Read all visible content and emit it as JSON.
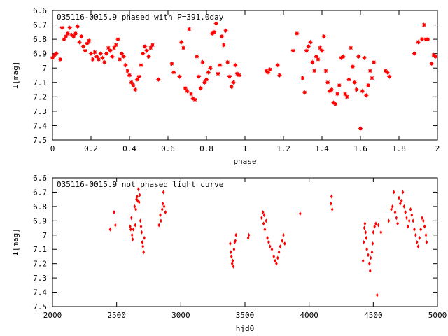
{
  "chart_data": [
    {
      "type": "scatter",
      "title": "035116-0015.9 phased with P=391.0day",
      "xlabel": "phase",
      "ylabel": "I[mag]",
      "xlim": [
        0,
        2
      ],
      "ylim": [
        6.6,
        7.5
      ],
      "y_inverted": true,
      "marker_color": "#ff0000",
      "marker_shape": "star",
      "xticks": [
        "0",
        "0.2",
        "0.4",
        "0.6",
        "0.8",
        "1",
        "1.2",
        "1.4",
        "1.6",
        "1.8",
        "2"
      ],
      "yticks": [
        "6.6",
        "6.7",
        "6.8",
        "6.9",
        "7",
        "7.1",
        "7.2",
        "7.3",
        "7.4",
        "7.5"
      ],
      "points": [
        [
          0.0,
          6.93
        ],
        [
          0.01,
          6.91
        ],
        [
          0.02,
          6.9
        ],
        [
          0.04,
          6.94
        ],
        [
          0.05,
          6.72
        ],
        [
          0.06,
          6.8
        ],
        [
          0.07,
          6.78
        ],
        [
          0.08,
          6.76
        ],
        [
          0.09,
          6.72
        ],
        [
          0.1,
          6.77
        ],
        [
          0.11,
          6.78
        ],
        [
          0.12,
          6.76
        ],
        [
          0.13,
          6.71
        ],
        [
          0.14,
          6.82
        ],
        [
          0.15,
          6.78
        ],
        [
          0.16,
          6.85
        ],
        [
          0.17,
          6.88
        ],
        [
          0.18,
          6.83
        ],
        [
          0.19,
          6.81
        ],
        [
          0.2,
          6.9
        ],
        [
          0.21,
          6.94
        ],
        [
          0.22,
          6.89
        ],
        [
          0.23,
          6.92
        ],
        [
          0.24,
          6.94
        ],
        [
          0.25,
          6.9
        ],
        [
          0.26,
          6.93
        ],
        [
          0.27,
          6.96
        ],
        [
          0.28,
          6.9
        ],
        [
          0.29,
          6.86
        ],
        [
          0.3,
          6.88
        ],
        [
          0.31,
          6.92
        ],
        [
          0.32,
          6.86
        ],
        [
          0.33,
          6.84
        ],
        [
          0.34,
          6.8
        ],
        [
          0.35,
          6.94
        ],
        [
          0.36,
          6.9
        ],
        [
          0.37,
          6.92
        ],
        [
          0.38,
          6.98
        ],
        [
          0.39,
          7.02
        ],
        [
          0.4,
          7.05
        ],
        [
          0.41,
          7.1
        ],
        [
          0.42,
          7.12
        ],
        [
          0.43,
          7.15
        ],
        [
          0.44,
          7.08
        ],
        [
          0.45,
          7.06
        ],
        [
          0.46,
          6.98
        ],
        [
          0.47,
          6.9
        ],
        [
          0.48,
          6.85
        ],
        [
          0.49,
          6.88
        ],
        [
          0.5,
          6.92
        ],
        [
          0.51,
          6.86
        ],
        [
          0.52,
          6.84
        ],
        [
          0.55,
          7.08
        ],
        [
          0.62,
          6.97
        ],
        [
          0.63,
          7.03
        ],
        [
          0.66,
          7.06
        ],
        [
          0.67,
          6.82
        ],
        [
          0.68,
          6.86
        ],
        [
          0.69,
          7.14
        ],
        [
          0.7,
          7.16
        ],
        [
          0.71,
          6.73
        ],
        [
          0.72,
          7.18
        ],
        [
          0.73,
          7.21
        ],
        [
          0.74,
          7.22
        ],
        [
          0.75,
          6.92
        ],
        [
          0.76,
          7.06
        ],
        [
          0.77,
          7.14
        ],
        [
          0.78,
          6.96
        ],
        [
          0.79,
          7.1
        ],
        [
          0.8,
          7.08
        ],
        [
          0.81,
          7.03
        ],
        [
          0.82,
          7.0
        ],
        [
          0.83,
          6.76
        ],
        [
          0.84,
          6.75
        ],
        [
          0.85,
          6.69
        ],
        [
          0.86,
          7.04
        ],
        [
          0.87,
          6.98
        ],
        [
          0.88,
          6.78
        ],
        [
          0.89,
          6.84
        ],
        [
          0.9,
          6.74
        ],
        [
          0.91,
          6.96
        ],
        [
          0.92,
          7.06
        ],
        [
          0.93,
          7.13
        ],
        [
          0.94,
          7.1
        ],
        [
          0.95,
          6.98
        ],
        [
          0.96,
          7.04
        ],
        [
          0.97,
          7.05
        ],
        [
          1.11,
          7.02
        ],
        [
          1.12,
          7.03
        ],
        [
          1.13,
          7.01
        ],
        [
          1.17,
          6.98
        ],
        [
          1.18,
          7.05
        ],
        [
          1.25,
          6.88
        ],
        [
          1.27,
          6.76
        ],
        [
          1.3,
          7.07
        ],
        [
          1.31,
          7.17
        ],
        [
          1.32,
          6.88
        ],
        [
          1.33,
          6.85
        ],
        [
          1.34,
          6.82
        ],
        [
          1.35,
          6.96
        ],
        [
          1.36,
          7.02
        ],
        [
          1.37,
          6.92
        ],
        [
          1.38,
          6.94
        ],
        [
          1.39,
          6.86
        ],
        [
          1.4,
          6.88
        ],
        [
          1.41,
          6.78
        ],
        [
          1.42,
          7.02
        ],
        [
          1.43,
          7.1
        ],
        [
          1.44,
          7.16
        ],
        [
          1.45,
          7.15
        ],
        [
          1.46,
          7.24
        ],
        [
          1.47,
          7.25
        ],
        [
          1.48,
          7.18
        ],
        [
          1.49,
          7.12
        ],
        [
          1.5,
          6.93
        ],
        [
          1.51,
          6.92
        ],
        [
          1.52,
          7.18
        ],
        [
          1.53,
          7.2
        ],
        [
          1.54,
          7.08
        ],
        [
          1.55,
          6.86
        ],
        [
          1.56,
          6.99
        ],
        [
          1.57,
          7.1
        ],
        [
          1.58,
          7.15
        ],
        [
          1.59,
          6.92
        ],
        [
          1.6,
          7.42
        ],
        [
          1.61,
          7.16
        ],
        [
          1.62,
          6.93
        ],
        [
          1.63,
          7.19
        ],
        [
          1.64,
          7.12
        ],
        [
          1.65,
          7.02
        ],
        [
          1.66,
          7.07
        ],
        [
          1.67,
          6.96
        ],
        [
          1.73,
          7.02
        ],
        [
          1.74,
          7.03
        ],
        [
          1.75,
          7.06
        ],
        [
          1.88,
          6.9
        ],
        [
          1.9,
          6.82
        ],
        [
          1.92,
          6.8
        ],
        [
          1.93,
          6.7
        ],
        [
          1.94,
          6.8
        ],
        [
          1.95,
          6.8
        ],
        [
          1.97,
          6.97
        ],
        [
          1.98,
          6.91
        ],
        [
          1.99,
          6.92
        ]
      ]
    },
    {
      "type": "scatter",
      "title": "035116-0015.9 not phased light curve",
      "xlabel": "hjd0",
      "ylabel": "I[mag]",
      "xlim": [
        2000,
        5000
      ],
      "ylim": [
        6.6,
        7.5
      ],
      "y_inverted": true,
      "marker_color": "#ff0000",
      "marker_shape": "diamond",
      "xticks": [
        "2000",
        "2500",
        "3000",
        "3500",
        "4000",
        "4500",
        "5000"
      ],
      "yticks": [
        "6.6",
        "6.7",
        "6.8",
        "6.9",
        "7",
        "7.1",
        "7.2",
        "7.3",
        "7.4",
        "7.5"
      ],
      "points": [
        [
          2450,
          6.96
        ],
        [
          2480,
          6.84
        ],
        [
          2490,
          6.93
        ],
        [
          2605,
          6.94
        ],
        [
          2610,
          6.96
        ],
        [
          2615,
          6.88
        ],
        [
          2620,
          7.0
        ],
        [
          2625,
          7.03
        ],
        [
          2630,
          6.96
        ],
        [
          2640,
          6.8
        ],
        [
          2645,
          6.93
        ],
        [
          2650,
          6.82
        ],
        [
          2655,
          6.75
        ],
        [
          2660,
          6.73
        ],
        [
          2665,
          6.76
        ],
        [
          2670,
          6.68
        ],
        [
          2675,
          6.77
        ],
        [
          2680,
          6.72
        ],
        [
          2685,
          6.9
        ],
        [
          2690,
          6.94
        ],
        [
          2695,
          6.98
        ],
        [
          2700,
          7.05
        ],
        [
          2705,
          7.08
        ],
        [
          2710,
          7.12
        ],
        [
          2715,
          7.02
        ],
        [
          2830,
          6.93
        ],
        [
          2840,
          6.86
        ],
        [
          2845,
          6.9
        ],
        [
          2855,
          6.82
        ],
        [
          2860,
          6.78
        ],
        [
          2865,
          6.7
        ],
        [
          2870,
          6.8
        ],
        [
          2880,
          6.84
        ],
        [
          3385,
          7.06
        ],
        [
          3390,
          7.12
        ],
        [
          3395,
          7.15
        ],
        [
          3400,
          7.2
        ],
        [
          3405,
          7.18
        ],
        [
          3410,
          7.22
        ],
        [
          3415,
          7.1
        ],
        [
          3420,
          7.05
        ],
        [
          3425,
          7.04
        ],
        [
          3430,
          7.0
        ],
        [
          3525,
          7.02
        ],
        [
          3530,
          7.0
        ],
        [
          3630,
          6.88
        ],
        [
          3640,
          6.84
        ],
        [
          3645,
          6.92
        ],
        [
          3650,
          6.86
        ],
        [
          3655,
          6.96
        ],
        [
          3665,
          6.9
        ],
        [
          3675,
          7.02
        ],
        [
          3685,
          7.05
        ],
        [
          3695,
          7.08
        ],
        [
          3710,
          7.1
        ],
        [
          3725,
          7.15
        ],
        [
          3735,
          7.18
        ],
        [
          3745,
          7.2
        ],
        [
          3755,
          7.16
        ],
        [
          3765,
          7.12
        ],
        [
          3775,
          7.08
        ],
        [
          3790,
          7.04
        ],
        [
          3800,
          7.0
        ],
        [
          3810,
          7.06
        ],
        [
          3930,
          6.85
        ],
        [
          4170,
          6.78
        ],
        [
          4175,
          6.73
        ],
        [
          4180,
          6.82
        ],
        [
          4420,
          7.18
        ],
        [
          4425,
          7.05
        ],
        [
          4430,
          6.95
        ],
        [
          4435,
          6.92
        ],
        [
          4440,
          6.98
        ],
        [
          4445,
          7.02
        ],
        [
          4450,
          7.1
        ],
        [
          4460,
          7.14
        ],
        [
          4470,
          7.2
        ],
        [
          4475,
          7.25
        ],
        [
          4480,
          7.16
        ],
        [
          4490,
          7.12
        ],
        [
          4495,
          7.06
        ],
        [
          4500,
          6.98
        ],
        [
          4510,
          6.94
        ],
        [
          4520,
          6.92
        ],
        [
          4530,
          7.42
        ],
        [
          4540,
          6.93
        ],
        [
          4560,
          6.98
        ],
        [
          4620,
          6.9
        ],
        [
          4640,
          6.82
        ],
        [
          4650,
          6.8
        ],
        [
          4660,
          6.7
        ],
        [
          4670,
          6.84
        ],
        [
          4680,
          6.88
        ],
        [
          4690,
          6.92
        ],
        [
          4700,
          6.74
        ],
        [
          4710,
          6.78
        ],
        [
          4720,
          6.76
        ],
        [
          4730,
          6.7
        ],
        [
          4740,
          6.8
        ],
        [
          4750,
          6.84
        ],
        [
          4760,
          6.88
        ],
        [
          4770,
          6.94
        ],
        [
          4780,
          6.9
        ],
        [
          4790,
          6.82
        ],
        [
          4800,
          6.86
        ],
        [
          4810,
          6.9
        ],
        [
          4820,
          6.96
        ],
        [
          4830,
          7.0
        ],
        [
          4840,
          7.05
        ],
        [
          4850,
          7.08
        ],
        [
          4860,
          7.02
        ],
        [
          4870,
          6.96
        ],
        [
          4880,
          6.88
        ],
        [
          4890,
          6.9
        ],
        [
          4900,
          6.94
        ],
        [
          4910,
          7.0
        ],
        [
          4915,
          7.05
        ]
      ]
    }
  ]
}
